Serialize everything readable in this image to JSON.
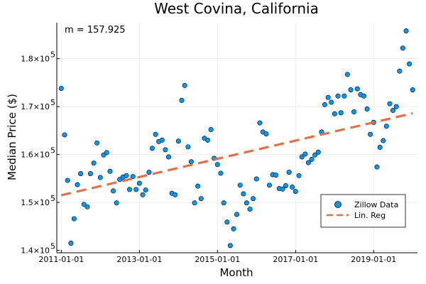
{
  "chart_data": {
    "type": "scatter",
    "title": "West Covina, California",
    "xlabel": "Month",
    "ylabel": "Median Price ($)",
    "annotation": "m = 157.925",
    "grid": true,
    "legend_position": "bottom-right",
    "x_range": [
      "2010-11-20",
      "2020-02-15"
    ],
    "ylim": [
      139500,
      187500
    ],
    "x_ticks": [
      "2011-01-01",
      "2013-01-01",
      "2015-01-01",
      "2017-01-01",
      "2019-01-01"
    ],
    "y_ticks": [
      {
        "value": 140000,
        "base": "1.4×10",
        "exp": "5"
      },
      {
        "value": 150000,
        "base": "1.5×10",
        "exp": "5"
      },
      {
        "value": 160000,
        "base": "1.6×10",
        "exp": "5"
      },
      {
        "value": 170000,
        "base": "1.7×10",
        "exp": "5"
      },
      {
        "value": 180000,
        "base": "1.8×10",
        "exp": "5"
      }
    ],
    "series": [
      {
        "name": "Zillow Data",
        "kind": "scatter",
        "color": "#009AFA",
        "points": [
          [
            "2011-01-01",
            173800
          ],
          [
            "2011-02-01",
            164100
          ],
          [
            "2011-03-01",
            154600
          ],
          [
            "2011-04-01",
            141500
          ],
          [
            "2011-05-01",
            146600
          ],
          [
            "2011-06-01",
            153700
          ],
          [
            "2011-07-01",
            156000
          ],
          [
            "2011-08-01",
            149600
          ],
          [
            "2011-09-01",
            149100
          ],
          [
            "2011-10-01",
            156000
          ],
          [
            "2011-11-01",
            158200
          ],
          [
            "2011-12-01",
            162400
          ],
          [
            "2012-01-01",
            155200
          ],
          [
            "2012-02-01",
            159900
          ],
          [
            "2012-03-01",
            160400
          ],
          [
            "2012-04-01",
            156500
          ],
          [
            "2012-05-01",
            152400
          ],
          [
            "2012-06-01",
            149900
          ],
          [
            "2012-07-01",
            154800
          ],
          [
            "2012-08-01",
            155300
          ],
          [
            "2012-09-01",
            155600
          ],
          [
            "2012-10-01",
            152700
          ],
          [
            "2012-11-01",
            155400
          ],
          [
            "2012-12-01",
            152700
          ],
          [
            "2013-01-01",
            154000
          ],
          [
            "2013-02-01",
            151600
          ],
          [
            "2013-03-01",
            152600
          ],
          [
            "2013-04-01",
            156300
          ],
          [
            "2013-05-01",
            161300
          ],
          [
            "2013-06-01",
            164200
          ],
          [
            "2013-07-01",
            162700
          ],
          [
            "2013-08-01",
            163000
          ],
          [
            "2013-09-01",
            161000
          ],
          [
            "2013-10-01",
            159500
          ],
          [
            "2013-11-01",
            151900
          ],
          [
            "2013-12-01",
            151600
          ],
          [
            "2014-01-01",
            162800
          ],
          [
            "2014-02-01",
            171300
          ],
          [
            "2014-03-01",
            174400
          ],
          [
            "2014-04-01",
            161600
          ],
          [
            "2014-05-01",
            158500
          ],
          [
            "2014-06-01",
            149900
          ],
          [
            "2014-07-01",
            153400
          ],
          [
            "2014-08-01",
            150800
          ],
          [
            "2014-09-01",
            163400
          ],
          [
            "2014-10-01",
            163000
          ],
          [
            "2014-11-01",
            165200
          ],
          [
            "2014-12-01",
            159200
          ],
          [
            "2015-01-01",
            157900
          ],
          [
            "2015-02-01",
            156100
          ],
          [
            "2015-03-01",
            149900
          ],
          [
            "2015-04-01",
            145900
          ],
          [
            "2015-05-01",
            141000
          ],
          [
            "2015-06-01",
            144500
          ],
          [
            "2015-07-01",
            147500
          ],
          [
            "2015-08-01",
            153600
          ],
          [
            "2015-09-01",
            151800
          ],
          [
            "2015-10-01",
            149900
          ],
          [
            "2015-11-01",
            148600
          ],
          [
            "2015-12-01",
            150800
          ],
          [
            "2016-01-01",
            154900
          ],
          [
            "2016-02-01",
            166600
          ],
          [
            "2016-03-01",
            164700
          ],
          [
            "2016-04-01",
            164300
          ],
          [
            "2016-05-01",
            153600
          ],
          [
            "2016-06-01",
            155800
          ],
          [
            "2016-07-01",
            155700
          ],
          [
            "2016-08-01",
            152900
          ],
          [
            "2016-09-01",
            152800
          ],
          [
            "2016-10-01",
            153500
          ],
          [
            "2016-11-01",
            156300
          ],
          [
            "2016-12-01",
            153200
          ],
          [
            "2017-01-01",
            152300
          ],
          [
            "2017-02-01",
            155600
          ],
          [
            "2017-03-01",
            159500
          ],
          [
            "2017-04-01",
            160100
          ],
          [
            "2017-05-01",
            158300
          ],
          [
            "2017-06-01",
            159000
          ],
          [
            "2017-07-01",
            159900
          ],
          [
            "2017-08-01",
            160500
          ],
          [
            "2017-09-01",
            164700
          ],
          [
            "2017-10-01",
            170400
          ],
          [
            "2017-11-01",
            171900
          ],
          [
            "2017-12-01",
            170900
          ],
          [
            "2018-01-01",
            168500
          ],
          [
            "2018-02-01",
            172200
          ],
          [
            "2018-03-01",
            168700
          ],
          [
            "2018-04-01",
            172200
          ],
          [
            "2018-05-01",
            176700
          ],
          [
            "2018-06-01",
            173500
          ],
          [
            "2018-07-01",
            168900
          ],
          [
            "2018-08-01",
            173700
          ],
          [
            "2018-09-01",
            172500
          ],
          [
            "2018-10-01",
            172200
          ],
          [
            "2018-11-01",
            169500
          ],
          [
            "2018-12-01",
            164200
          ],
          [
            "2019-01-01",
            166700
          ],
          [
            "2019-02-01",
            157400
          ],
          [
            "2019-03-01",
            161500
          ],
          [
            "2019-04-01",
            162900
          ],
          [
            "2019-05-01",
            165900
          ],
          [
            "2019-06-01",
            170600
          ],
          [
            "2019-07-01",
            169200
          ],
          [
            "2019-08-01",
            170000
          ],
          [
            "2019-09-01",
            177400
          ],
          [
            "2019-10-01",
            182200
          ],
          [
            "2019-11-01",
            185800
          ],
          [
            "2019-12-01",
            178900
          ],
          [
            "2020-01-01",
            173500
          ]
        ]
      },
      {
        "name": "Lin. Reg",
        "kind": "line",
        "style": "dashed",
        "color": "#E26F46",
        "points": [
          [
            "2011-01-01",
            151500
          ],
          [
            "2020-01-01",
            168600
          ]
        ]
      }
    ]
  }
}
